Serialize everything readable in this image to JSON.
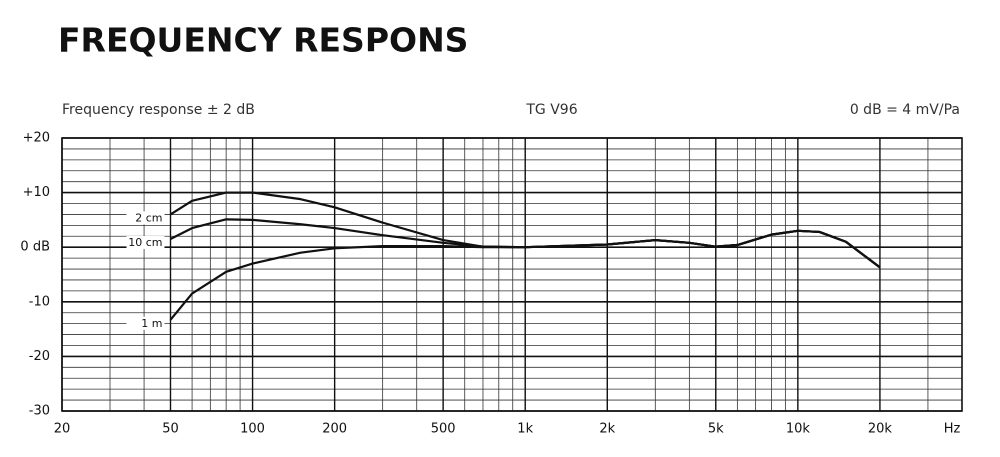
{
  "chart_data": {
    "type": "line",
    "title": "FREQUENCY RESPONS",
    "subtitle_left": "Frequency response ± 2 dB",
    "subtitle_center": "TG V96",
    "subtitle_right": "0 dB = 4 mV/Pa",
    "x_label": "Hz",
    "xscale": "log",
    "grid": true,
    "xlim": [
      20,
      40000
    ],
    "xticks": [
      20,
      50,
      100,
      200,
      500,
      {
        "value": 1000,
        "label": "1k"
      },
      {
        "value": 2000,
        "label": "2k"
      },
      {
        "value": 5000,
        "label": "5k"
      },
      {
        "value": 10000,
        "label": "10k"
      },
      {
        "value": 20000,
        "label": "20k"
      }
    ],
    "ylim": [
      -30,
      20
    ],
    "yticks": [
      {
        "value": 20,
        "label": "+20"
      },
      {
        "value": 10,
        "label": "+10"
      },
      {
        "value": 0,
        "label": "0 dB"
      },
      -10,
      -20,
      -30
    ],
    "x": [
      50,
      60,
      80,
      100,
      150,
      200,
      300,
      500,
      700,
      1000,
      2000,
      3000,
      4000,
      5000,
      6000,
      8000,
      10000,
      12000,
      15000,
      20000
    ],
    "series": [
      {
        "name": "2 cm",
        "color": "#111111",
        "values": [
          6,
          8.5,
          10,
          10,
          8.8,
          7.3,
          4.5,
          1.3,
          0.1,
          0,
          0.5,
          1.3,
          0.8,
          0.1,
          0.4,
          2.3,
          3,
          2.8,
          1,
          -3.7
        ]
      },
      {
        "name": "10 cm",
        "color": "#111111",
        "values": [
          1.5,
          3.5,
          5.1,
          5,
          4.2,
          3.5,
          2.2,
          0.8,
          0.1,
          0,
          0.5,
          1.3,
          0.8,
          0.1,
          0.4,
          2.3,
          3,
          2.8,
          1,
          -3.7
        ]
      },
      {
        "name": "1 m",
        "color": "#111111",
        "values": [
          -13.3,
          -8.5,
          -4.5,
          -3,
          -1,
          -0.2,
          0.2,
          0.2,
          0,
          0,
          0.5,
          1.3,
          0.8,
          0.1,
          0.4,
          2.3,
          3,
          2.8,
          1,
          -3.7
        ]
      }
    ]
  }
}
